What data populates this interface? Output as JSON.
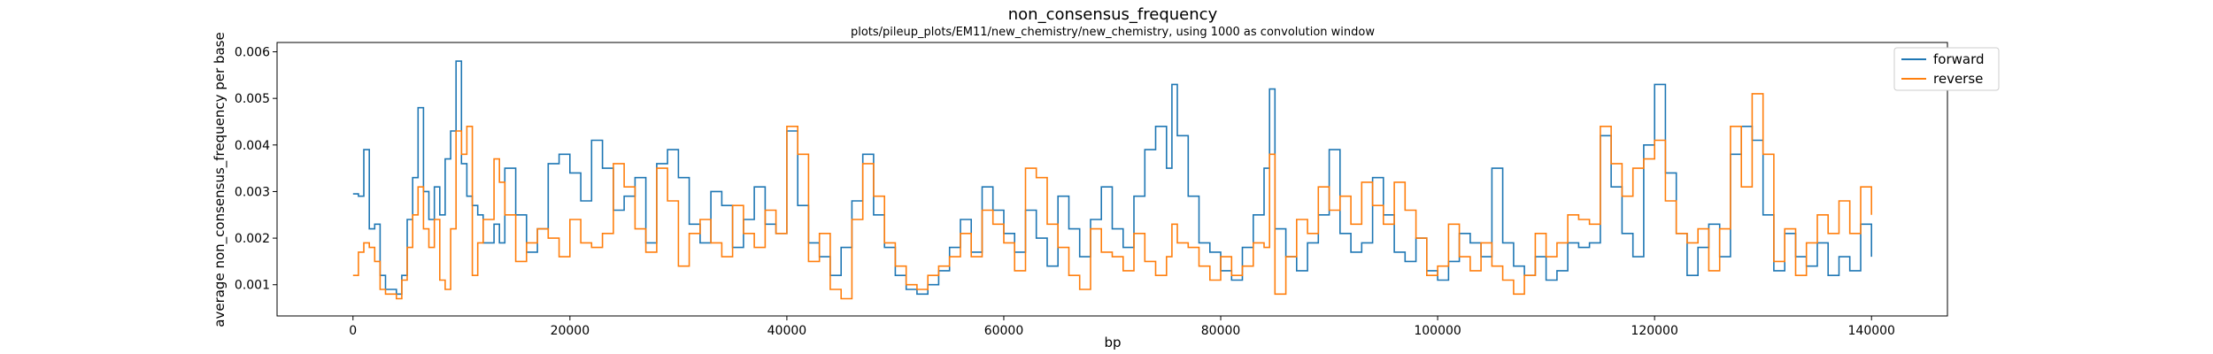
{
  "chart_data": {
    "type": "line",
    "title": "non_consensus_frequency",
    "subtitle": "plots/pileup_plots/EM11/new_chemistry/new_chemistry, using 1000 as convolution window",
    "xlabel": "bp",
    "ylabel": "average non_consensus_frequency per base",
    "xlim": [
      -7000,
      147000
    ],
    "ylim": [
      0.00033,
      0.0062
    ],
    "xticks": [
      0,
      20000,
      40000,
      60000,
      80000,
      100000,
      120000,
      140000
    ],
    "xtick_labels": [
      "0",
      "20000",
      "40000",
      "60000",
      "80000",
      "100000",
      "120000",
      "140000"
    ],
    "yticks": [
      0.001,
      0.002,
      0.003,
      0.004,
      0.005,
      0.006
    ],
    "ytick_labels": [
      "0.001",
      "0.002",
      "0.003",
      "0.004",
      "0.005",
      "0.006"
    ],
    "grid": false,
    "legend_position": "top-right",
    "colors": {
      "forward": "#1f77b4",
      "reverse": "#ff7f0e"
    },
    "series": [
      {
        "name": "forward",
        "x": [
          0,
          500,
          1000,
          1500,
          2000,
          2500,
          3000,
          4000,
          4500,
          5000,
          5500,
          6000,
          6500,
          7000,
          7500,
          8000,
          8500,
          9000,
          9500,
          10000,
          10500,
          11000,
          11500,
          12000,
          13000,
          13500,
          14000,
          15000,
          16000,
          17000,
          18000,
          19000,
          20000,
          21000,
          22000,
          23000,
          24000,
          25000,
          26000,
          27000,
          28000,
          29000,
          30000,
          31000,
          32000,
          33000,
          34000,
          35000,
          36000,
          37000,
          38000,
          39000,
          40000,
          41000,
          42000,
          43000,
          44000,
          45000,
          46000,
          47000,
          48000,
          49000,
          50000,
          51000,
          52000,
          53000,
          54000,
          55000,
          56000,
          57000,
          58000,
          59000,
          60000,
          61000,
          62000,
          63000,
          64000,
          65000,
          66000,
          67000,
          68000,
          69000,
          70000,
          71000,
          72000,
          73000,
          74000,
          75000,
          75500,
          76000,
          77000,
          78000,
          79000,
          80000,
          81000,
          82000,
          83000,
          84000,
          84500,
          85000,
          86000,
          87000,
          88000,
          89000,
          90000,
          91000,
          92000,
          93000,
          94000,
          95000,
          96000,
          97000,
          98000,
          99000,
          100000,
          101000,
          102000,
          103000,
          104000,
          105000,
          106000,
          107000,
          108000,
          109000,
          110000,
          111000,
          112000,
          113000,
          114000,
          115000,
          116000,
          117000,
          118000,
          119000,
          120000,
          121000,
          122000,
          123000,
          124000,
          125000,
          126000,
          127000,
          128000,
          129000,
          130000,
          131000,
          132000,
          133000,
          134000,
          135000,
          136000,
          137000,
          138000,
          139000,
          140000
        ],
        "y": [
          0.00295,
          0.0029,
          0.0039,
          0.0022,
          0.0023,
          0.0012,
          0.0009,
          0.0008,
          0.0012,
          0.0024,
          0.0033,
          0.0048,
          0.003,
          0.0024,
          0.0031,
          0.0025,
          0.0037,
          0.0043,
          0.0058,
          0.0036,
          0.0029,
          0.0027,
          0.0025,
          0.0019,
          0.0023,
          0.0019,
          0.0035,
          0.0025,
          0.0017,
          0.0022,
          0.0036,
          0.0038,
          0.0034,
          0.0028,
          0.0041,
          0.0035,
          0.0026,
          0.0029,
          0.0033,
          0.0019,
          0.0036,
          0.0039,
          0.0033,
          0.0023,
          0.0019,
          0.003,
          0.0027,
          0.0018,
          0.0024,
          0.0031,
          0.0023,
          0.0021,
          0.0043,
          0.0027,
          0.0019,
          0.0016,
          0.0012,
          0.0018,
          0.0028,
          0.0038,
          0.0025,
          0.0018,
          0.0012,
          0.0009,
          0.0008,
          0.001,
          0.0013,
          0.0018,
          0.0024,
          0.0017,
          0.0031,
          0.0026,
          0.0021,
          0.0017,
          0.0026,
          0.002,
          0.0014,
          0.0029,
          0.0022,
          0.0016,
          0.0024,
          0.0031,
          0.0022,
          0.0018,
          0.0029,
          0.0039,
          0.0044,
          0.0035,
          0.0053,
          0.0042,
          0.0029,
          0.0019,
          0.0017,
          0.0013,
          0.0011,
          0.0018,
          0.0025,
          0.0035,
          0.0052,
          0.0022,
          0.0016,
          0.0013,
          0.0019,
          0.0025,
          0.0039,
          0.0021,
          0.0017,
          0.0019,
          0.0033,
          0.0025,
          0.0017,
          0.0015,
          0.002,
          0.0013,
          0.0011,
          0.0015,
          0.0021,
          0.0019,
          0.0016,
          0.0035,
          0.0019,
          0.0014,
          0.0012,
          0.0016,
          0.0011,
          0.0013,
          0.0019,
          0.0018,
          0.0019,
          0.0042,
          0.0031,
          0.0021,
          0.0016,
          0.004,
          0.0053,
          0.0034,
          0.0021,
          0.0012,
          0.0018,
          0.0023,
          0.0016,
          0.0038,
          0.0044,
          0.0041,
          0.0025,
          0.0013,
          0.0021,
          0.0016,
          0.0014,
          0.0019,
          0.0012,
          0.0016,
          0.0013,
          0.0023,
          0.0016
        ]
      },
      {
        "name": "reverse",
        "x": [
          0,
          500,
          1000,
          1500,
          2000,
          2500,
          3000,
          4000,
          4500,
          5000,
          5500,
          6000,
          6500,
          7000,
          7500,
          8000,
          8500,
          9000,
          9500,
          10000,
          10500,
          11000,
          11500,
          12000,
          13000,
          13500,
          14000,
          15000,
          16000,
          17000,
          18000,
          19000,
          20000,
          21000,
          22000,
          23000,
          24000,
          25000,
          26000,
          27000,
          28000,
          29000,
          30000,
          31000,
          32000,
          33000,
          34000,
          35000,
          36000,
          37000,
          38000,
          39000,
          40000,
          41000,
          42000,
          43000,
          44000,
          45000,
          46000,
          47000,
          48000,
          49000,
          50000,
          51000,
          52000,
          53000,
          54000,
          55000,
          56000,
          57000,
          58000,
          59000,
          60000,
          61000,
          62000,
          63000,
          64000,
          65000,
          66000,
          67000,
          68000,
          69000,
          70000,
          71000,
          72000,
          73000,
          74000,
          75000,
          75500,
          76000,
          77000,
          78000,
          79000,
          80000,
          81000,
          82000,
          83000,
          84000,
          84500,
          85000,
          86000,
          87000,
          88000,
          89000,
          90000,
          91000,
          92000,
          93000,
          94000,
          95000,
          96000,
          97000,
          98000,
          99000,
          100000,
          101000,
          102000,
          103000,
          104000,
          105000,
          106000,
          107000,
          108000,
          109000,
          110000,
          111000,
          112000,
          113000,
          114000,
          115000,
          116000,
          117000,
          118000,
          119000,
          120000,
          121000,
          122000,
          123000,
          124000,
          125000,
          126000,
          127000,
          128000,
          129000,
          130000,
          131000,
          132000,
          133000,
          134000,
          135000,
          136000,
          137000,
          138000,
          139000,
          140000
        ],
        "y": [
          0.0012,
          0.0017,
          0.0019,
          0.0018,
          0.0015,
          0.0009,
          0.0008,
          0.0007,
          0.0011,
          0.0018,
          0.0025,
          0.0031,
          0.0022,
          0.0018,
          0.0024,
          0.0011,
          0.0009,
          0.0022,
          0.0043,
          0.0038,
          0.0044,
          0.0012,
          0.0019,
          0.0024,
          0.0037,
          0.0032,
          0.0025,
          0.0015,
          0.0019,
          0.0022,
          0.002,
          0.0016,
          0.0024,
          0.0019,
          0.0018,
          0.0021,
          0.0036,
          0.0031,
          0.0022,
          0.0017,
          0.0035,
          0.0028,
          0.0014,
          0.0021,
          0.0024,
          0.0019,
          0.0016,
          0.0027,
          0.0021,
          0.0018,
          0.0026,
          0.0021,
          0.0044,
          0.0038,
          0.0015,
          0.0021,
          0.0009,
          0.0007,
          0.0024,
          0.0036,
          0.0029,
          0.0019,
          0.0014,
          0.001,
          0.0009,
          0.0012,
          0.0014,
          0.0016,
          0.0021,
          0.0016,
          0.0026,
          0.0023,
          0.0019,
          0.0013,
          0.0035,
          0.0033,
          0.0023,
          0.0018,
          0.0012,
          0.0009,
          0.0022,
          0.0017,
          0.0016,
          0.0013,
          0.0021,
          0.0015,
          0.0012,
          0.0016,
          0.0023,
          0.0019,
          0.0018,
          0.0014,
          0.0011,
          0.0016,
          0.0012,
          0.0014,
          0.0019,
          0.0018,
          0.0038,
          0.0008,
          0.0016,
          0.0024,
          0.0021,
          0.0031,
          0.0026,
          0.0029,
          0.0023,
          0.0032,
          0.0027,
          0.0023,
          0.0032,
          0.0026,
          0.002,
          0.0012,
          0.0014,
          0.0023,
          0.0016,
          0.0013,
          0.0019,
          0.0014,
          0.0011,
          0.0008,
          0.0012,
          0.0021,
          0.0016,
          0.0019,
          0.0025,
          0.0024,
          0.0023,
          0.0044,
          0.0036,
          0.0029,
          0.0035,
          0.0037,
          0.0041,
          0.0028,
          0.0021,
          0.0019,
          0.0022,
          0.0013,
          0.0022,
          0.0044,
          0.0031,
          0.0051,
          0.0038,
          0.0015,
          0.0022,
          0.0012,
          0.0019,
          0.0025,
          0.0021,
          0.0028,
          0.0021,
          0.0031,
          0.0025
        ]
      }
    ]
  }
}
